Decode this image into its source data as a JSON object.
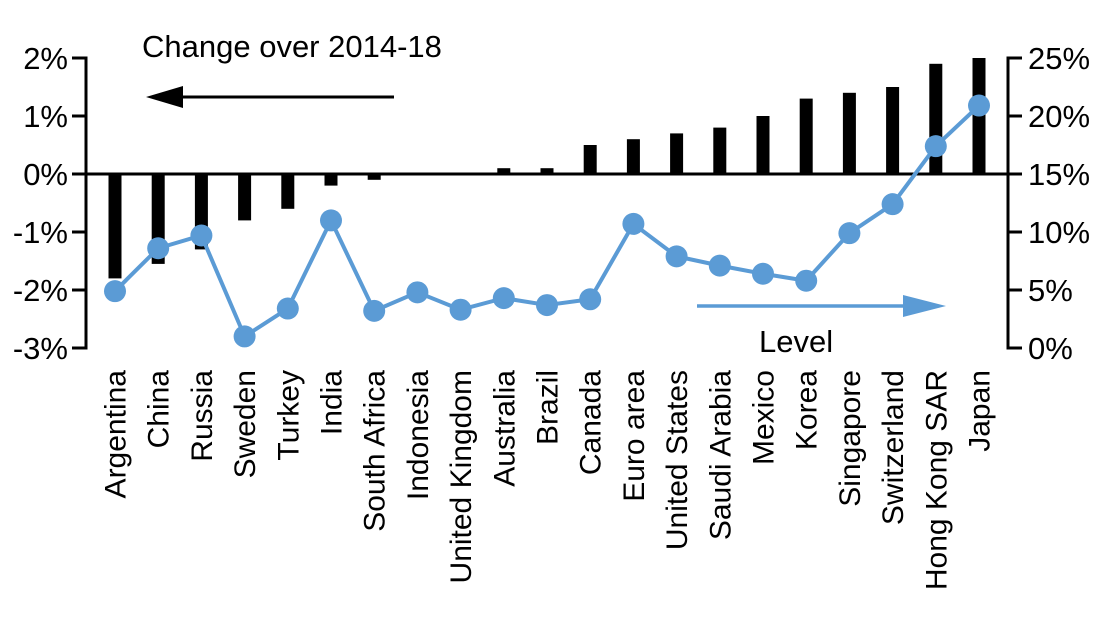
{
  "chart_data": {
    "type": "bar+line combo, dual axis",
    "title": "",
    "categories": [
      "Argentina",
      "China",
      "Russia",
      "Sweden",
      "Turkey",
      "India",
      "South Africa",
      "Indonesia",
      "United Kingdom",
      "Australia",
      "Brazil",
      "Canada",
      "Euro area",
      "United States",
      "Saudi Arabia",
      "Mexico",
      "Korea",
      "Singapore",
      "Switzerland",
      "Hong Kong SAR",
      "Japan"
    ],
    "series": [
      {
        "name": "Change over 2014-18",
        "type": "bar",
        "axis": "left",
        "color": "#000000",
        "values": [
          -1.8,
          -1.55,
          -1.3,
          -0.8,
          -0.6,
          -0.2,
          -0.1,
          0,
          0,
          0.1,
          0.1,
          0.5,
          0.6,
          0.7,
          0.8,
          1.0,
          1.3,
          1.4,
          1.5,
          1.9,
          2.0
        ]
      },
      {
        "name": "Level",
        "type": "line",
        "axis": "right",
        "color": "#5B9BD5",
        "values": [
          4.9,
          8.6,
          9.7,
          1.0,
          3.4,
          11.0,
          3.2,
          4.8,
          3.3,
          4.3,
          3.7,
          4.2,
          10.7,
          7.9,
          7.1,
          6.4,
          5.8,
          9.9,
          12.4,
          17.4,
          20.9
        ]
      }
    ],
    "left_axis": {
      "min": -3,
      "max": 2,
      "tick_values": [
        2,
        1,
        0,
        -1,
        -2,
        -3
      ],
      "tick_labels": [
        "2%",
        "1%",
        "0%",
        "-1%",
        "-2%",
        "-3%"
      ]
    },
    "right_axis": {
      "min": 0,
      "max": 25,
      "tick_values": [
        25,
        20,
        15,
        10,
        5,
        0
      ],
      "tick_labels": [
        "25%",
        "20%",
        "15%",
        "10%",
        "5%",
        "0%"
      ]
    },
    "annotations": {
      "change_label": "Change over 2014-18",
      "change_arrow_direction": "left",
      "level_label": "Level",
      "level_arrow_direction": "right"
    },
    "grid": false,
    "legend_position": "in-plot annotations with arrows",
    "colors": {
      "bar": "#000000",
      "line": "#5B9BD5",
      "text": "#000000",
      "background": "#FFFFFF"
    }
  }
}
